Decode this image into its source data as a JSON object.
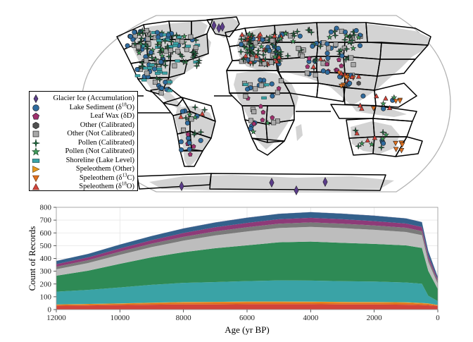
{
  "chart_data": [
    {
      "type": "map",
      "legend": [
        {
          "label": "Glacier Ice (Accumulation)",
          "marker": "diamond",
          "color": "#5b3c8a"
        },
        {
          "label": "Lake Sediment (δ18O)",
          "sup": "18",
          "marker": "circle",
          "color": "#2f6b9e"
        },
        {
          "label": "Leaf Wax (δD)",
          "marker": "pentagon",
          "color": "#a0306e"
        },
        {
          "label": "Other (Calibrated)",
          "marker": "hexagon",
          "color": "#505050"
        },
        {
          "label": "Other (Not Calibrated)",
          "marker": "square",
          "color": "#a8a8a8"
        },
        {
          "label": "Pollen (Calibrated)",
          "marker": "plus4",
          "color": "#1d6b3f"
        },
        {
          "label": "Pollen (Not Calibrated)",
          "marker": "star",
          "color": "#3f9a5a"
        },
        {
          "label": "Shoreline (Lake Level)",
          "marker": "rect",
          "color": "#3aa3a6"
        },
        {
          "label": "Speleothem (Other)",
          "marker": "tri-right",
          "color": "#e89a1c"
        },
        {
          "label": "Speleothem (δ13C)",
          "sup": "13",
          "marker": "tri-down",
          "color": "#e0701e"
        },
        {
          "label": "Speleothem (δ18O)",
          "sup": "18",
          "marker": "tri-up",
          "color": "#d2443a"
        }
      ]
    },
    {
      "type": "area",
      "stacked": true,
      "xlabel": "Age (yr BP)",
      "ylabel": "Count of Records",
      "xlim": [
        12000,
        0
      ],
      "ylim": [
        0,
        800
      ],
      "xticks": [
        12000,
        10000,
        8000,
        6000,
        4000,
        2000,
        0
      ],
      "yticks": [
        0,
        100,
        200,
        300,
        400,
        500,
        600,
        700,
        800
      ],
      "grid": true,
      "x": [
        12000,
        11000,
        10000,
        9000,
        8000,
        7000,
        6000,
        5000,
        4000,
        3000,
        2000,
        1000,
        500,
        300,
        0
      ],
      "series": [
        {
          "name": "Speleothem (δ18O)",
          "color": "#d2443a",
          "values": [
            30,
            32,
            35,
            38,
            40,
            40,
            42,
            42,
            42,
            40,
            40,
            38,
            35,
            33,
            28
          ]
        },
        {
          "name": "Speleothem (δ13C)",
          "color": "#e0701e",
          "values": [
            8,
            9,
            10,
            12,
            14,
            15,
            15,
            15,
            14,
            14,
            14,
            14,
            12,
            11,
            6
          ]
        },
        {
          "name": "Speleothem (Other)",
          "color": "#e89a1c",
          "values": [
            2,
            3,
            3,
            4,
            5,
            5,
            6,
            6,
            6,
            6,
            5,
            5,
            5,
            4,
            2
          ]
        },
        {
          "name": "Shoreline (Lake Level)",
          "color": "#3aa3a6",
          "values": [
            100,
            110,
            125,
            140,
            150,
            155,
            160,
            165,
            165,
            162,
            160,
            155,
            150,
            60,
            30
          ]
        },
        {
          "name": "Pollen (Not Calibrated)",
          "color": "#3f9a5a",
          "values": [
            0,
            0,
            0,
            0,
            0,
            0,
            0,
            0,
            0,
            0,
            0,
            0,
            0,
            0,
            0
          ]
        },
        {
          "name": "Pollen (Calibrated)",
          "color": "#2e8a55",
          "values": [
            125,
            150,
            185,
            215,
            240,
            265,
            280,
            298,
            305,
            300,
            295,
            290,
            280,
            195,
            95
          ]
        },
        {
          "name": "Other (Not Calibrated)",
          "color": "#bdbdbd",
          "values": [
            50,
            60,
            70,
            80,
            90,
            100,
            108,
            112,
            115,
            115,
            110,
            105,
            100,
            70,
            40
          ]
        },
        {
          "name": "Other (Calibrated)",
          "color": "#7a7a7a",
          "values": [
            20,
            22,
            25,
            27,
            30,
            32,
            33,
            34,
            35,
            35,
            34,
            33,
            32,
            25,
            18
          ]
        },
        {
          "name": "Leaf Wax (δD)",
          "color": "#8e3a78",
          "values": [
            20,
            22,
            25,
            27,
            30,
            32,
            34,
            35,
            36,
            35,
            34,
            33,
            32,
            25,
            17
          ]
        },
        {
          "name": "Lake Sediment (δ18O)",
          "color": "#34618c",
          "values": [
            25,
            27,
            30,
            32,
            35,
            37,
            40,
            42,
            44,
            43,
            42,
            40,
            38,
            35,
            18
          ]
        },
        {
          "name": "Glacier Ice (Accumulation)",
          "color": "#3c3a75",
          "values": [
            1,
            1,
            1,
            1,
            1,
            1,
            1,
            1,
            1,
            1,
            1,
            1,
            1,
            1,
            1
          ]
        }
      ]
    }
  ]
}
